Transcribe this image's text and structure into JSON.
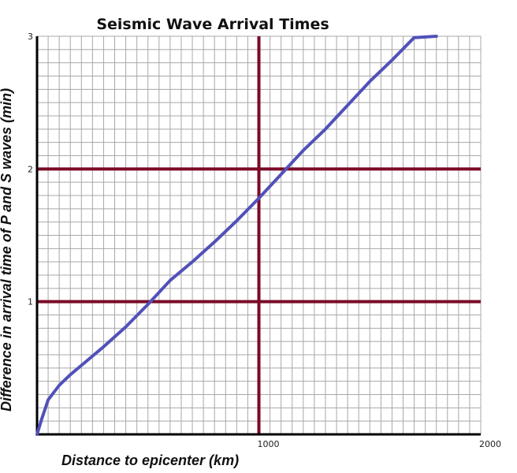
{
  "chart_data": {
    "type": "line",
    "title": "Seismic Wave Arrival Times",
    "xlabel": "Distance to epicenter (km)",
    "ylabel": "Difference in arrival time of P and S waves (min)",
    "xlim": [
      0,
      2000
    ],
    "ylim": [
      0,
      3
    ],
    "x_ticks": [
      {
        "value": 1000,
        "label": "1000"
      },
      {
        "value": 2000,
        "label": "2000"
      }
    ],
    "y_ticks": [
      {
        "value": 1,
        "label": "1"
      },
      {
        "value": 2,
        "label": "2"
      },
      {
        "value": 3,
        "label": "3"
      }
    ],
    "minor_grid_x_step": 50,
    "minor_grid_y_step": 0.1,
    "grid": true,
    "major_grid_color": "#7b0a27",
    "minor_grid_color": "#a8a8a8",
    "series": [
      {
        "color": "#5151b9",
        "x": [
          0,
          20,
          50,
          100,
          150,
          200,
          300,
          400,
          500,
          600,
          700,
          800,
          900,
          1000,
          1100,
          1200,
          1300,
          1400,
          1500,
          1600,
          1700,
          1800
        ],
        "y": [
          0,
          0.11,
          0.26,
          0.37,
          0.45,
          0.52,
          0.66,
          0.81,
          0.98,
          1.16,
          1.3,
          1.45,
          1.61,
          1.78,
          1.96,
          2.14,
          2.3,
          2.48,
          2.66,
          2.82,
          2.99,
          3.0
        ]
      }
    ]
  }
}
